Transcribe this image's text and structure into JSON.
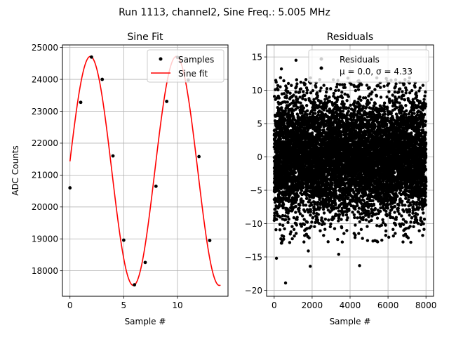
{
  "figure": {
    "suptitle": "Run 1113, channel2, Sine Freq.: 5.005 MHz",
    "colors": {
      "sine_fit": "#ff0000",
      "points": "#000000",
      "grid": "#b0b0b0"
    }
  },
  "chart_data": [
    {
      "type": "line",
      "title": "Sine Fit",
      "xlabel": "Sample #",
      "ylabel": "ADC Counts",
      "xlim": [
        -0.7,
        14.7
      ],
      "ylim": [
        17200,
        25080
      ],
      "xticks": [
        0,
        5,
        10
      ],
      "yticks": [
        18000,
        19000,
        20000,
        21000,
        22000,
        23000,
        24000,
        25000
      ],
      "grid": true,
      "legend_position": "top-right",
      "series": [
        {
          "name": "Samples",
          "style": "points",
          "x": [
            0,
            1,
            2,
            3,
            4,
            5,
            6,
            7,
            8,
            9,
            10,
            11,
            12,
            13
          ],
          "y": [
            20600,
            23280,
            24700,
            24000,
            21600,
            18960,
            17560,
            18260,
            20650,
            23310,
            24690,
            23980,
            21580,
            18950
          ]
        },
        {
          "name": "Sine fit",
          "style": "line",
          "model": {
            "offset": 21130,
            "amplitude": 3590,
            "freq_cycles_per_sample": 0.125,
            "phase_rad": 0.084,
            "x_range": [
              0,
              14
            ]
          }
        }
      ]
    },
    {
      "type": "scatter",
      "title": "Residuals",
      "xlabel": "Sample #",
      "ylabel": "",
      "xlim": [
        -400,
        8400
      ],
      "ylim": [
        -20.9,
        16.8
      ],
      "xticks": [
        0,
        2000,
        4000,
        6000,
        8000
      ],
      "yticks": [
        -20,
        -15,
        -10,
        -5,
        0,
        5,
        10,
        15
      ],
      "grid": true,
      "legend_position": "top-right",
      "series": [
        {
          "name": "Residuals",
          "stats": {
            "mu": 0.0,
            "sigma": 4.33,
            "n_points": 8000,
            "x_range": [
              0,
              8000
            ]
          },
          "outliers": [
            [
              600,
              -18.9
            ],
            [
              120,
              -15.2
            ],
            [
              1900,
              -16.4
            ],
            [
              4500,
              -16.3
            ],
            [
              1150,
              14.5
            ],
            [
              380,
              13.2
            ],
            [
              3400,
              -14.6
            ],
            [
              1800,
              -14.1
            ],
            [
              2400,
              11.6
            ],
            [
              7200,
              -12.8
            ]
          ]
        }
      ]
    }
  ],
  "legends": {
    "left": {
      "items": [
        "Samples",
        "Sine fit"
      ]
    },
    "right": {
      "label": "Residuals",
      "stats_text": "μ = 0.0, σ = 4.33"
    }
  }
}
